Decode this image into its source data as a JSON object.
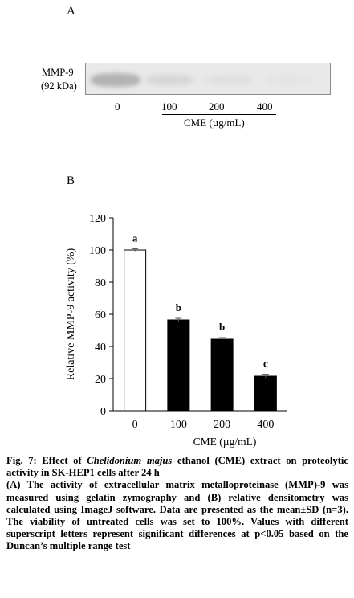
{
  "panel_a": {
    "label": "A",
    "marker_name": "MMP-9",
    "marker_size": "(92 kDa)",
    "lanes": [
      "0",
      "100",
      "200",
      "400"
    ],
    "group_label": "CME (µg/mL)"
  },
  "panel_b": {
    "label": "B"
  },
  "chart_data": {
    "type": "bar",
    "categories": [
      "0",
      "100",
      "200",
      "400"
    ],
    "values": [
      100,
      56.5,
      44.5,
      21.5
    ],
    "errors": [
      0.8,
      1.0,
      1.0,
      1.2
    ],
    "significance": [
      "a",
      "b",
      "b",
      "c"
    ],
    "bar_colors": [
      "#ffffff",
      "#000000",
      "#000000",
      "#000000"
    ],
    "ylabel": "Relative MMP-9 activity (%)",
    "xlabel": "CME (µg/mL)",
    "ylim": [
      0,
      120
    ],
    "yticks": [
      0,
      20,
      40,
      60,
      80,
      100,
      120
    ],
    "grid": false
  },
  "caption": {
    "fig_label": "Fig. 7: Effect of ",
    "species": "Chelidonium majus",
    "title_rest": " ethanol (CME) extract on proteolytic activity in SK-HEP1 cells after 24 h",
    "body": "(A) The activity of extracellular matrix metalloproteinase (MMP)-9 was measured using gelatin zymography and (B) relative densitometry was calculated using ImageJ software. Data are presented as the mean±SD (n=3). The viability of untreated cells was set to 100%. Values with different superscript letters represent significant differences at p<0.05 based on the Duncan’s multiple range test"
  }
}
